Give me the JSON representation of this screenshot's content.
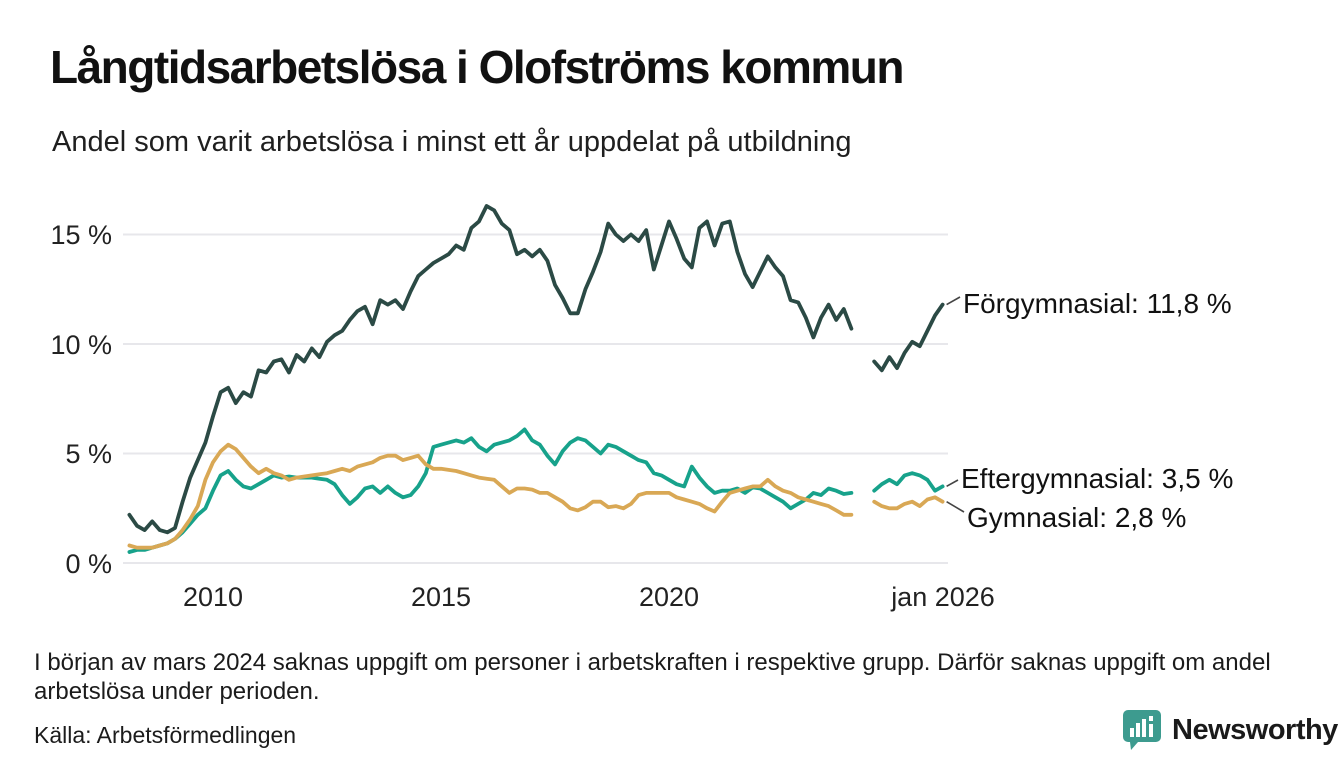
{
  "header": {
    "title": "Långtidsarbetslösa i Olofströms kommun",
    "subtitle": "Andel som varit arbetslösa i minst ett år uppdelat på utbildning"
  },
  "chart": {
    "y_ticks": [
      {
        "label": "15 %",
        "value": 15
      },
      {
        "label": "10 %",
        "value": 10
      },
      {
        "label": "5 %",
        "value": 5
      },
      {
        "label": "0 %",
        "value": 0
      }
    ],
    "x_ticks": [
      {
        "label": "2010",
        "t": 2010
      },
      {
        "label": "2015",
        "t": 2015
      },
      {
        "label": "2020",
        "t": 2020
      },
      {
        "label": "jan 2026",
        "t": 2026
      }
    ],
    "end_labels": [
      {
        "text": "Förgymnasial: 11,8 %"
      },
      {
        "text": "Eftergymnasial:  3,5 %"
      },
      {
        "text": "Gymnasial:  2,8 %"
      }
    ]
  },
  "chart_data": {
    "type": "line",
    "title": "Långtidsarbetslösa i Olofströms kommun",
    "subtitle": "Andel som varit arbetslösa i minst ett år uppdelat på utbildning",
    "unit": "%",
    "x_start": 2008.1667,
    "x_step_years": 0.166667,
    "missing_data_period": "early 2024 (values are null)",
    "ylim": [
      0,
      17
    ],
    "grid": "horizontal",
    "legend_position": "end-of-line labels, right side",
    "series": [
      {
        "name": "Förgymnasial",
        "color": "#2b4a45",
        "end_value_label": "11,8 %",
        "values": [
          2.2,
          1.7,
          1.5,
          1.9,
          1.5,
          1.4,
          1.6,
          2.8,
          3.9,
          4.7,
          5.5,
          6.7,
          7.8,
          8.0,
          7.3,
          7.8,
          7.6,
          8.8,
          8.7,
          9.2,
          9.3,
          8.7,
          9.5,
          9.2,
          9.8,
          9.4,
          10.1,
          10.4,
          10.6,
          11.1,
          11.5,
          11.7,
          10.9,
          12.0,
          11.8,
          12.0,
          11.6,
          12.4,
          13.1,
          13.4,
          13.7,
          13.9,
          14.1,
          14.5,
          14.3,
          15.3,
          15.6,
          16.3,
          16.1,
          15.5,
          15.2,
          14.1,
          14.3,
          14.0,
          14.3,
          13.8,
          12.7,
          12.1,
          11.4,
          11.4,
          12.5,
          13.3,
          14.2,
          15.5,
          15.0,
          14.7,
          15.0,
          14.7,
          15.2,
          13.4,
          14.5,
          15.6,
          14.8,
          13.9,
          13.5,
          15.3,
          15.6,
          14.5,
          15.5,
          15.6,
          14.2,
          13.2,
          12.6,
          13.3,
          14.0,
          13.5,
          13.1,
          12.0,
          11.9,
          11.2,
          10.3,
          11.2,
          11.8,
          11.1,
          11.6,
          10.7,
          null,
          null,
          9.2,
          8.8,
          9.4,
          8.9,
          9.6,
          10.1,
          9.9,
          10.6,
          11.3,
          11.8
        ]
      },
      {
        "name": "Eftergymnasial",
        "color": "#17a28b",
        "end_value_label": "3,5 %",
        "values": [
          0.5,
          0.6,
          0.6,
          0.7,
          0.8,
          0.9,
          1.1,
          1.4,
          1.8,
          2.2,
          2.5,
          3.3,
          4.0,
          4.2,
          3.8,
          3.5,
          3.4,
          3.6,
          3.8,
          4.0,
          3.9,
          3.95,
          3.9,
          3.9,
          3.9,
          3.85,
          3.8,
          3.6,
          3.1,
          2.7,
          3.0,
          3.4,
          3.5,
          3.2,
          3.5,
          3.2,
          3.0,
          3.1,
          3.5,
          4.1,
          5.3,
          5.4,
          5.5,
          5.6,
          5.5,
          5.7,
          5.3,
          5.1,
          5.4,
          5.5,
          5.6,
          5.8,
          6.1,
          5.6,
          5.4,
          4.9,
          4.5,
          5.1,
          5.5,
          5.7,
          5.6,
          5.3,
          5.0,
          5.4,
          5.3,
          5.1,
          4.9,
          4.7,
          4.6,
          4.1,
          4.0,
          3.8,
          3.6,
          3.5,
          4.4,
          3.9,
          3.5,
          3.2,
          3.3,
          3.3,
          3.4,
          3.2,
          3.45,
          3.4,
          3.2,
          3.0,
          2.8,
          2.5,
          2.7,
          2.9,
          3.2,
          3.1,
          3.4,
          3.3,
          3.15,
          3.2,
          null,
          null,
          3.3,
          3.6,
          3.8,
          3.6,
          4.0,
          4.1,
          4.0,
          3.8,
          3.3,
          3.5
        ]
      },
      {
        "name": "Gymnasial",
        "color": "#d9a855",
        "end_value_label": "2,8 %",
        "values": [
          0.8,
          0.7,
          0.7,
          0.7,
          0.8,
          0.9,
          1.1,
          1.5,
          2.0,
          2.6,
          3.8,
          4.6,
          5.1,
          5.4,
          5.2,
          4.8,
          4.4,
          4.1,
          4.3,
          4.1,
          4.0,
          3.8,
          3.9,
          3.95,
          4.0,
          4.05,
          4.1,
          4.2,
          4.3,
          4.2,
          4.4,
          4.5,
          4.6,
          4.8,
          4.9,
          4.9,
          4.7,
          4.8,
          4.9,
          4.5,
          4.3,
          4.3,
          4.25,
          4.2,
          4.1,
          4.0,
          3.9,
          3.85,
          3.8,
          3.5,
          3.2,
          3.4,
          3.4,
          3.35,
          3.2,
          3.2,
          3.0,
          2.8,
          2.5,
          2.4,
          2.55,
          2.8,
          2.8,
          2.55,
          2.6,
          2.5,
          2.7,
          3.1,
          3.2,
          3.2,
          3.2,
          3.2,
          3.0,
          2.9,
          2.8,
          2.7,
          2.5,
          2.35,
          2.8,
          3.2,
          3.3,
          3.4,
          3.5,
          3.5,
          3.8,
          3.5,
          3.3,
          3.2,
          3.0,
          2.9,
          2.8,
          2.7,
          2.6,
          2.4,
          2.2,
          2.2,
          null,
          null,
          2.8,
          2.6,
          2.5,
          2.5,
          2.7,
          2.8,
          2.6,
          2.9,
          3.0,
          2.8
        ]
      }
    ]
  },
  "footer": {
    "note": "I början av mars 2024 saknas uppgift om personer i arbetskraften i respektive grupp. Därför saknas uppgift om andel arbetslösa under perioden.",
    "source": "Källa: Arbetsförmedlingen",
    "brand": "Newsworthy"
  },
  "colors": {
    "forgymnasial": "#2b4a45",
    "eftergymnasial": "#17a28b",
    "gymnasial": "#d9a855",
    "gridline": "#e7e7eb",
    "brand_teal": "#3d9b8f",
    "connector": "#444444"
  }
}
